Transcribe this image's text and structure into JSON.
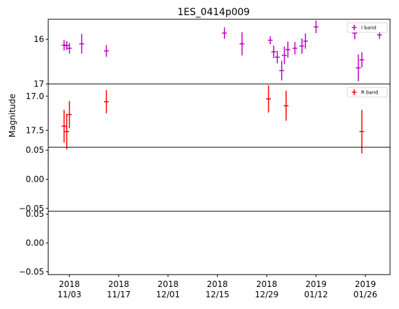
{
  "chart_data": {
    "type": "scatter",
    "title": "1ES_0414p009",
    "ylabel": "Magnitude",
    "xlabel": "",
    "x_ticks": [
      {
        "date": "2018-11-03",
        "year": "2018",
        "day": "11/03"
      },
      {
        "date": "2018-11-17",
        "year": "2018",
        "day": "11/17"
      },
      {
        "date": "2018-12-01",
        "year": "2018",
        "day": "12/01"
      },
      {
        "date": "2018-12-15",
        "year": "2018",
        "day": "12/15"
      },
      {
        "date": "2018-12-29",
        "year": "2018",
        "day": "12/29"
      },
      {
        "date": "2019-01-12",
        "year": "2019",
        "day": "01/12"
      },
      {
        "date": "2019-01-26",
        "year": "2019",
        "day": "01/26"
      }
    ],
    "xlim": [
      "2018-10-28",
      "2019-02-02"
    ],
    "panels": [
      {
        "band": "I band",
        "color": "#bf00bf",
        "legend": "top-right",
        "inverted": true,
        "ylim": [
          17.0,
          15.55
        ],
        "yticks": [
          {
            "v": 16,
            "label": "16"
          },
          {
            "v": 17,
            "label": "17"
          }
        ],
        "points": [
          {
            "x": "2018-11-01T12:00",
            "y": 16.13,
            "err": 0.12
          },
          {
            "x": "2018-11-02T06:00",
            "y": 16.14,
            "err": 0.1
          },
          {
            "x": "2018-11-03T00:00",
            "y": 16.2,
            "err": 0.12
          },
          {
            "x": "2018-11-06T12:00",
            "y": 16.1,
            "err": 0.22
          },
          {
            "x": "2018-11-13T12:00",
            "y": 16.26,
            "err": 0.13
          },
          {
            "x": "2018-12-17T00:00",
            "y": 15.86,
            "err": 0.13
          },
          {
            "x": "2018-12-22T00:00",
            "y": 16.1,
            "err": 0.26
          },
          {
            "x": "2018-12-30T00:00",
            "y": 16.02,
            "err": 0.09
          },
          {
            "x": "2018-12-31T00:00",
            "y": 16.28,
            "err": 0.14
          },
          {
            "x": "2019-01-01T00:00",
            "y": 16.4,
            "err": 0.14
          },
          {
            "x": "2019-01-02T06:00",
            "y": 16.7,
            "err": 0.22
          },
          {
            "x": "2019-01-03T00:00",
            "y": 16.36,
            "err": 0.2
          },
          {
            "x": "2019-01-04T00:00",
            "y": 16.23,
            "err": 0.18
          },
          {
            "x": "2019-01-06T00:00",
            "y": 16.2,
            "err": 0.14
          },
          {
            "x": "2019-01-08T00:00",
            "y": 16.15,
            "err": 0.17
          },
          {
            "x": "2019-01-09T00:00",
            "y": 16.04,
            "err": 0.17
          },
          {
            "x": "2019-01-12T00:00",
            "y": 15.72,
            "err": 0.14
          },
          {
            "x": "2019-01-23T00:00",
            "y": 15.86,
            "err": 0.14
          },
          {
            "x": "2019-01-24T00:00",
            "y": 16.64,
            "err": 0.3
          },
          {
            "x": "2019-01-25T00:00",
            "y": 16.46,
            "err": 0.17
          },
          {
            "x": "2019-01-30T00:00",
            "y": 15.9,
            "err": 0.09
          }
        ]
      },
      {
        "band": "R band",
        "color": "#ff0000",
        "legend": "top-right",
        "inverted": true,
        "ylim": [
          17.75,
          16.82
        ],
        "yticks": [
          {
            "v": 17.0,
            "label": "17.0"
          },
          {
            "v": 17.5,
            "label": "17.5"
          }
        ],
        "points": [
          {
            "x": "2018-11-01T12:00",
            "y": 17.44,
            "err": 0.24
          },
          {
            "x": "2018-11-02T06:00",
            "y": 17.52,
            "err": 0.26
          },
          {
            "x": "2018-11-03T00:00",
            "y": 17.27,
            "err": 0.2
          },
          {
            "x": "2018-11-13T12:00",
            "y": 17.08,
            "err": 0.17
          },
          {
            "x": "2018-12-29T12:00",
            "y": 17.04,
            "err": 0.2
          },
          {
            "x": "2019-01-03T12:00",
            "y": 17.14,
            "err": 0.22
          },
          {
            "x": "2019-01-25T00:00",
            "y": 17.52,
            "err": 0.32
          }
        ]
      },
      {
        "band": "",
        "ylim": [
          -0.055,
          0.055
        ],
        "yticks": [
          {
            "v": 0.05,
            "label": "0.05"
          },
          {
            "v": 0.0,
            "label": "0.00"
          },
          {
            "v": -0.05,
            "label": "−0.05"
          }
        ],
        "points": []
      },
      {
        "band": "",
        "ylim": [
          -0.055,
          0.055
        ],
        "yticks": [
          {
            "v": 0.05,
            "label": "0.05"
          },
          {
            "v": 0.0,
            "label": "0.00"
          },
          {
            "v": -0.05,
            "label": "−0.05"
          }
        ],
        "points": []
      }
    ]
  }
}
